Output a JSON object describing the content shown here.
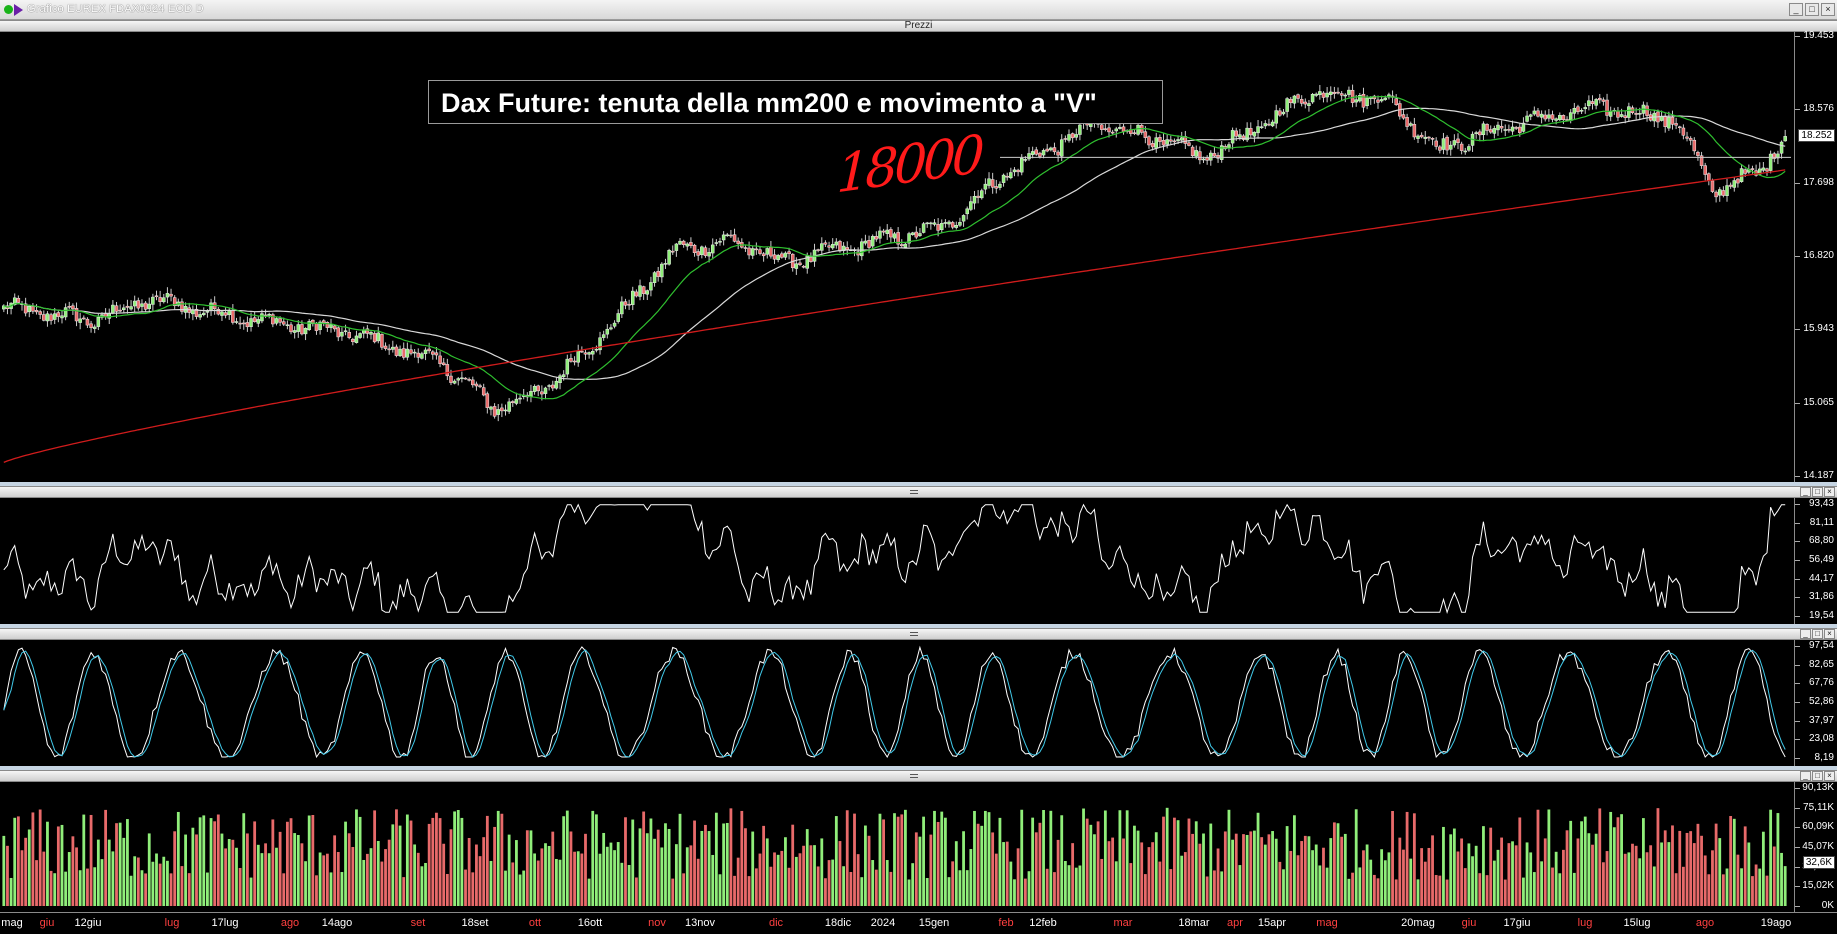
{
  "window": {
    "title": "Grafico EUREX FDAX0924 EOD D"
  },
  "price_panel": {
    "title": "Prezzi",
    "annotation": "Dax Future: tenuta della mm200 e movimento a \"V\"",
    "handwritten": "18000",
    "axis_labels": [
      "19.453",
      "18.576",
      "17.698",
      "16.820",
      "15.943",
      "15.065",
      "14.187"
    ],
    "current_price": "18.252"
  },
  "osc1_panel": {
    "axis_labels": [
      "93,43",
      "81,11",
      "68,80",
      "56,49",
      "44,17",
      "31,86",
      "19,54"
    ]
  },
  "osc2_panel": {
    "axis_labels": [
      "97,54",
      "82,65",
      "67,76",
      "52,86",
      "37,97",
      "23,08",
      "8,19"
    ]
  },
  "vol_panel": {
    "axis_labels": [
      "90,13K",
      "75,11K",
      "60,09K",
      "45,07K",
      "30,05K",
      "15,02K",
      "0K"
    ],
    "current_value": "32,6K"
  },
  "x_axis": [
    {
      "label": "mag",
      "red": false
    },
    {
      "label": "giu",
      "red": true
    },
    {
      "label": "12giu",
      "red": false
    },
    {
      "label": "lug",
      "red": true
    },
    {
      "label": "17lug",
      "red": false
    },
    {
      "label": "ago",
      "red": true
    },
    {
      "label": "14ago",
      "red": false
    },
    {
      "label": "set",
      "red": true
    },
    {
      "label": "18set",
      "red": false
    },
    {
      "label": "ott",
      "red": true
    },
    {
      "label": "16ott",
      "red": false
    },
    {
      "label": "nov",
      "red": true
    },
    {
      "label": "13nov",
      "red": false
    },
    {
      "label": "dic",
      "red": true
    },
    {
      "label": "18dic",
      "red": false
    },
    {
      "label": "2024",
      "red": false
    },
    {
      "label": "15gen",
      "red": false
    },
    {
      "label": "feb",
      "red": true
    },
    {
      "label": "12feb",
      "red": false
    },
    {
      "label": "mar",
      "red": true
    },
    {
      "label": "18mar",
      "red": false
    },
    {
      "label": "apr",
      "red": true
    },
    {
      "label": "15apr",
      "red": false
    },
    {
      "label": "mag",
      "red": true
    },
    {
      "label": "20mag",
      "red": false
    },
    {
      "label": "giu",
      "red": true
    },
    {
      "label": "17giu",
      "red": false
    },
    {
      "label": "lug",
      "red": true
    },
    {
      "label": "15lug",
      "red": false
    },
    {
      "label": "ago",
      "red": true
    },
    {
      "label": "19ago",
      "red": false
    }
  ],
  "colors": {
    "up": "#90ee7a",
    "down": "#e86a6a",
    "ma_green": "#2fbf2f",
    "ma_white": "#d8d8d8",
    "ma_red": "#d01c1c",
    "stoch_signal": "#40c8e8"
  },
  "chart_data": {
    "type": "candlestick",
    "ylim": [
      14187,
      19453
    ],
    "level_line": 18000,
    "keypoints_close": [
      [
        0,
        16200
      ],
      [
        25,
        16050
      ],
      [
        40,
        16300
      ],
      [
        70,
        16050
      ],
      [
        95,
        15900
      ],
      [
        120,
        15550
      ],
      [
        135,
        15000
      ],
      [
        148,
        15200
      ],
      [
        165,
        15900
      ],
      [
        185,
        16900
      ],
      [
        200,
        17000
      ],
      [
        215,
        16750
      ],
      [
        240,
        17000
      ],
      [
        258,
        17150
      ],
      [
        275,
        17800
      ],
      [
        300,
        18400
      ],
      [
        315,
        18250
      ],
      [
        330,
        18000
      ],
      [
        345,
        18350
      ],
      [
        360,
        18800
      ],
      [
        380,
        18700
      ],
      [
        395,
        18100
      ],
      [
        415,
        18400
      ],
      [
        440,
        18600
      ],
      [
        460,
        18450
      ],
      [
        470,
        17600
      ],
      [
        482,
        17800
      ],
      [
        490,
        18252
      ]
    ],
    "ma_200_end": 17850,
    "volume_ylim": [
      0,
      90130
    ],
    "icons": [
      "close-icon",
      "minimize-icon",
      "restore-icon"
    ]
  }
}
